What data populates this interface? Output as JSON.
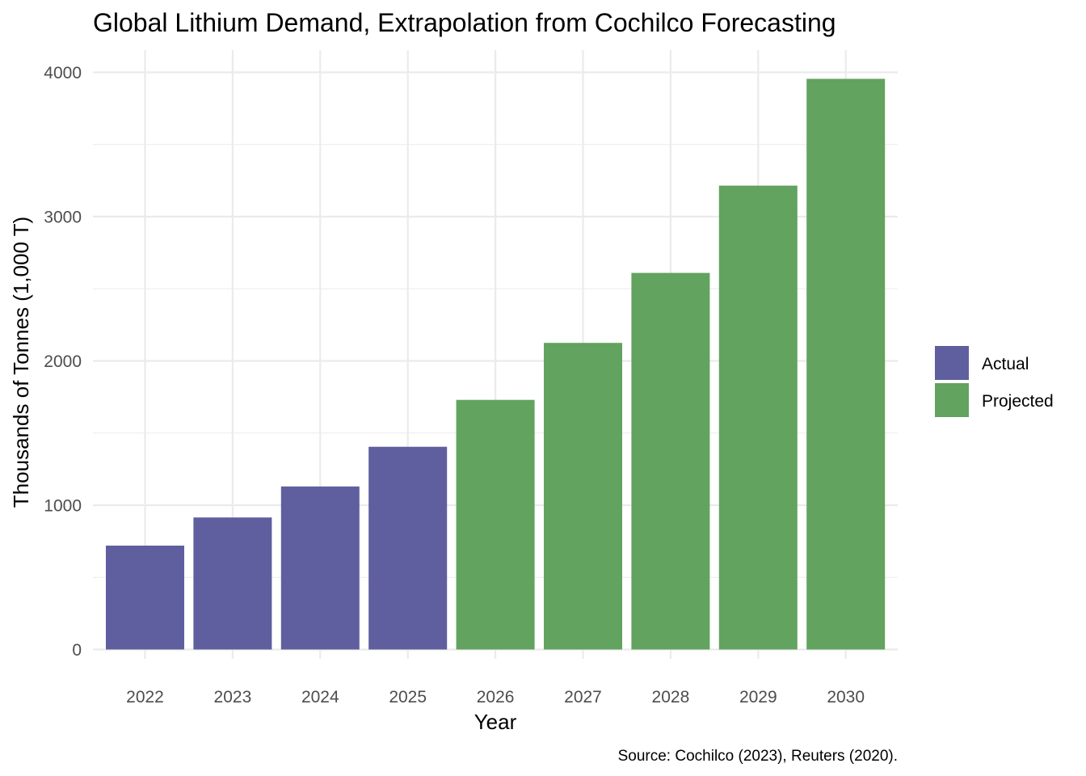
{
  "colors": {
    "actual": "#5f5e9e",
    "projected": "#62a35f"
  },
  "chart_data": {
    "type": "bar",
    "title": "Global Lithium Demand, Extrapolation from Cochilco Forecasting",
    "xlabel": "Year",
    "ylabel": "Thousands of Tonnes (1,000 T)",
    "caption": "Source: Cochilco (2023), Reuters (2020).",
    "categories": [
      "2022",
      "2023",
      "2024",
      "2025",
      "2026",
      "2027",
      "2028",
      "2029",
      "2030"
    ],
    "values": [
      720,
      915,
      1130,
      1405,
      1730,
      2125,
      2610,
      3215,
      3955
    ],
    "groups": [
      "Actual",
      "Actual",
      "Actual",
      "Actual",
      "Projected",
      "Projected",
      "Projected",
      "Projected",
      "Projected"
    ],
    "ylim": [
      0,
      4000
    ],
    "yticks": [
      0,
      1000,
      2000,
      3000,
      4000
    ],
    "grid": true,
    "legend": {
      "placement": "right",
      "entries": [
        {
          "label": "Actual",
          "color": "#5f5e9e"
        },
        {
          "label": "Projected",
          "color": "#62a35f"
        }
      ]
    }
  }
}
